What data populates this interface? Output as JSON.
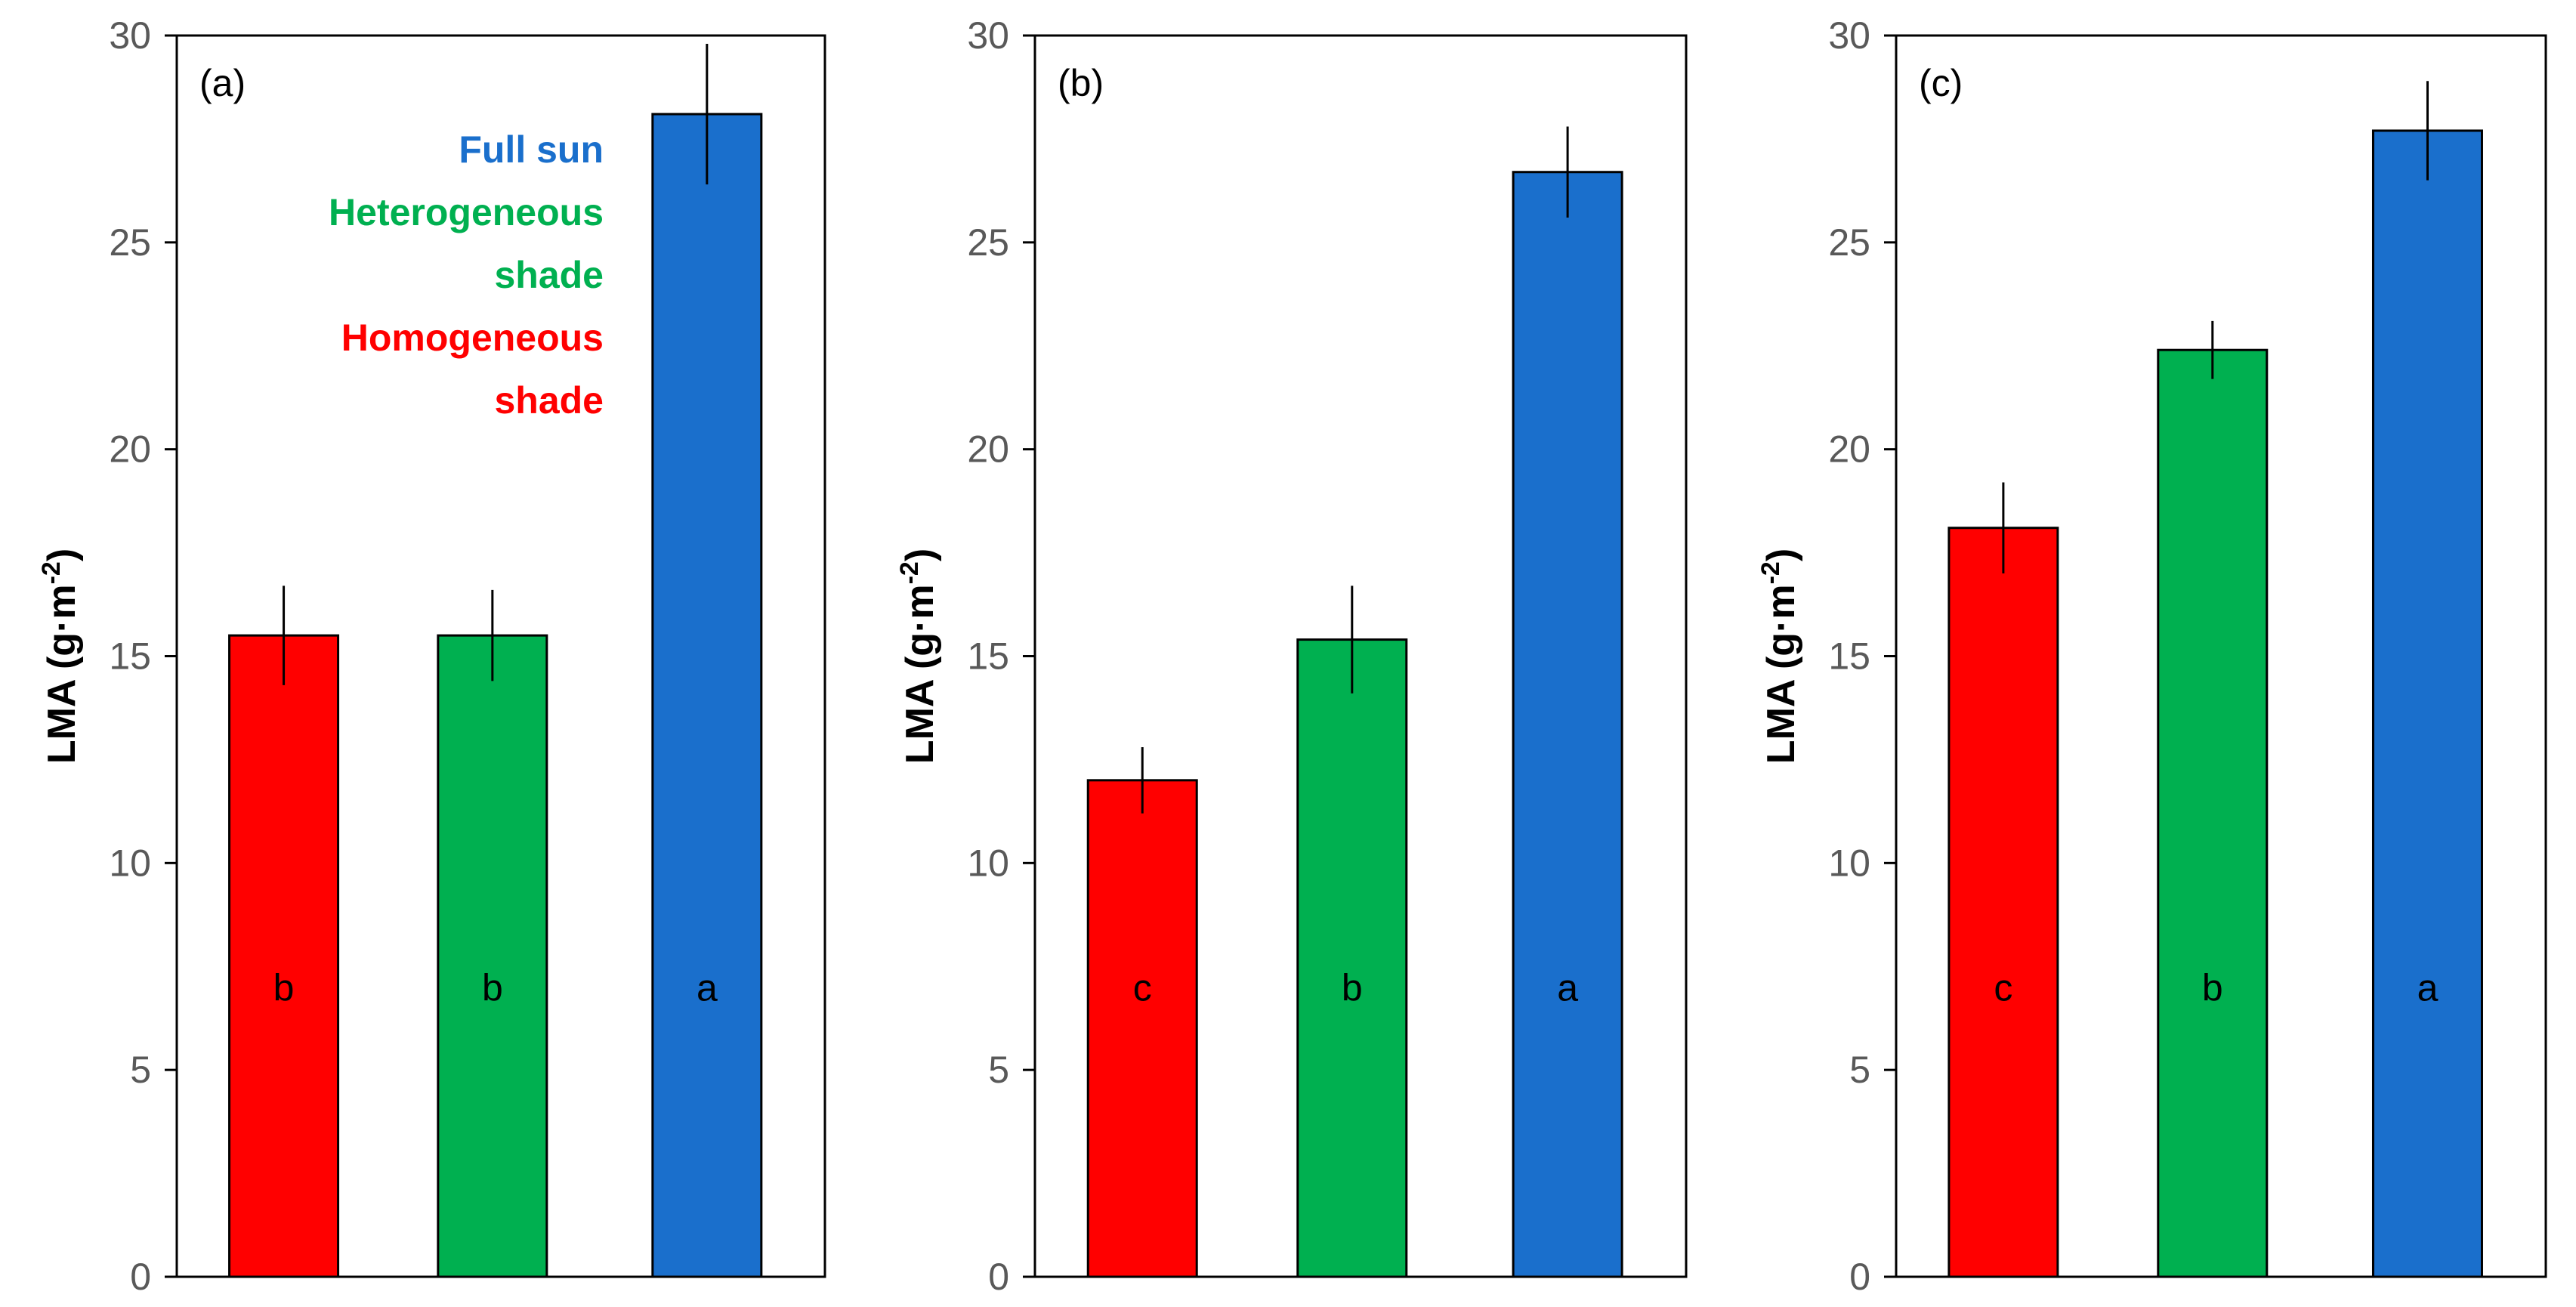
{
  "chart_data": [
    {
      "type": "bar",
      "panel_label": "(a)",
      "ylabel_main": "LMA (g·m",
      "ylabel_sup": "-2",
      "ylabel_close": ")",
      "ylim": [
        0,
        30
      ],
      "yticks": [
        "0",
        "5",
        "10",
        "15",
        "20",
        "25",
        "30"
      ],
      "categories": [
        "Homogeneous shade",
        "Heterogeneous shade",
        "Full sun"
      ],
      "values": [
        15.5,
        15.5,
        28.1
      ],
      "errors": [
        1.2,
        1.1,
        1.7
      ],
      "colors": [
        "#ff0000",
        "#00b050",
        "#1a6fcc"
      ],
      "letters": [
        "b",
        "b",
        "a"
      ],
      "legend": [
        {
          "lines": [
            "Full sun"
          ],
          "color": "#1a6fcc"
        },
        {
          "lines": [
            "Heterogeneous",
            "shade"
          ],
          "color": "#00b050"
        },
        {
          "lines": [
            "Homogeneous",
            "shade"
          ],
          "color": "#ff0000"
        }
      ]
    },
    {
      "type": "bar",
      "panel_label": "(b)",
      "ylabel_main": "LMA (g·m",
      "ylabel_sup": "-2",
      "ylabel_close": ")",
      "ylim": [
        0,
        30
      ],
      "yticks": [
        "0",
        "5",
        "10",
        "15",
        "20",
        "25",
        "30"
      ],
      "categories": [
        "Homogeneous shade",
        "Heterogeneous shade",
        "Full sun"
      ],
      "values": [
        12.0,
        15.4,
        26.7
      ],
      "errors": [
        0.8,
        1.3,
        1.1
      ],
      "colors": [
        "#ff0000",
        "#00b050",
        "#1a6fcc"
      ],
      "letters": [
        "c",
        "b",
        "a"
      ],
      "legend": []
    },
    {
      "type": "bar",
      "panel_label": "(c)",
      "ylabel_main": "LMA (g·m",
      "ylabel_sup": "-2",
      "ylabel_close": ")",
      "ylim": [
        0,
        30
      ],
      "yticks": [
        "0",
        "5",
        "10",
        "15",
        "20",
        "25",
        "30"
      ],
      "categories": [
        "Homogeneous shade",
        "Heterogeneous shade",
        "Full sun"
      ],
      "values": [
        18.1,
        22.4,
        27.7
      ],
      "errors": [
        1.1,
        0.7,
        1.2
      ],
      "colors": [
        "#ff0000",
        "#00b050",
        "#1a6fcc"
      ],
      "letters": [
        "c",
        "b",
        "a"
      ],
      "legend": []
    }
  ]
}
